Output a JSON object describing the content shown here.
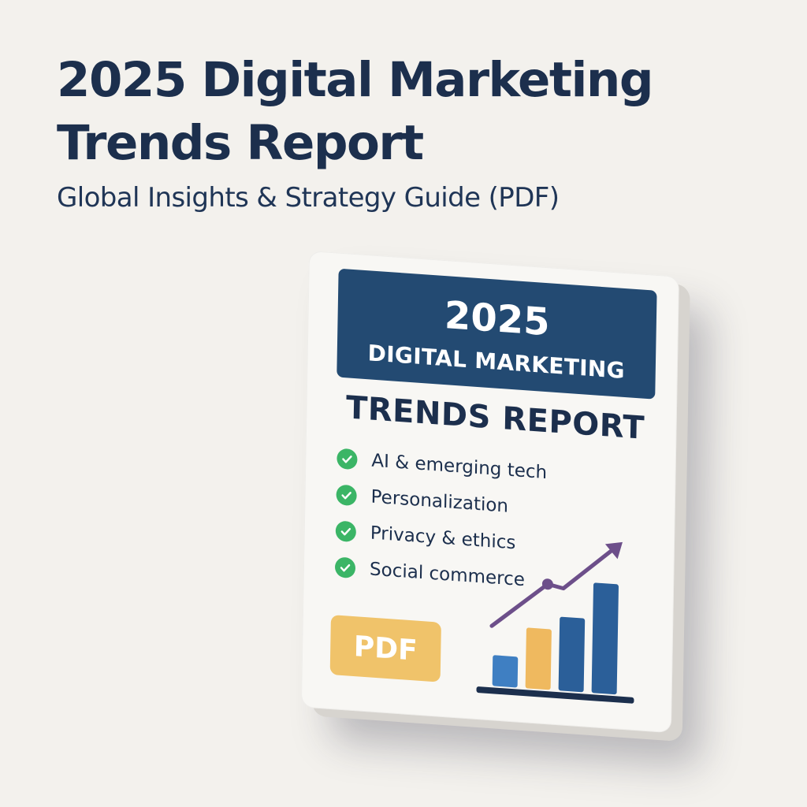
{
  "header": {
    "title_line1": "2025 Digital Marketing",
    "title_line2": "Trends Report",
    "subtitle": "Global Insights & Strategy Guide (PDF)"
  },
  "cover": {
    "banner_year": "2025",
    "banner_line": "DIGITAL MARKETING",
    "heading": "TRENDS REPORT",
    "checklist": [
      "AI & emerging tech",
      "Personalization",
      "Privacy & ethics",
      "Social commerce"
    ],
    "badge_label": "PDF"
  },
  "colors": {
    "background": "#f3f1ed",
    "title_text": "#1c2f4d",
    "banner": "#234a72",
    "check": "#3bb566",
    "badge": "#f0c36a",
    "bar_blue_light": "#3f7fc2",
    "bar_orange": "#efb95f",
    "bar_blue_dark": "#2b5f99",
    "trend_line": "#6d4f8a"
  },
  "icons": {
    "check": "check-circle-icon",
    "trend": "trend-arrow-icon"
  },
  "illustration": {
    "bar_heights": [
      0.28,
      0.55,
      0.67,
      1.0
    ]
  }
}
